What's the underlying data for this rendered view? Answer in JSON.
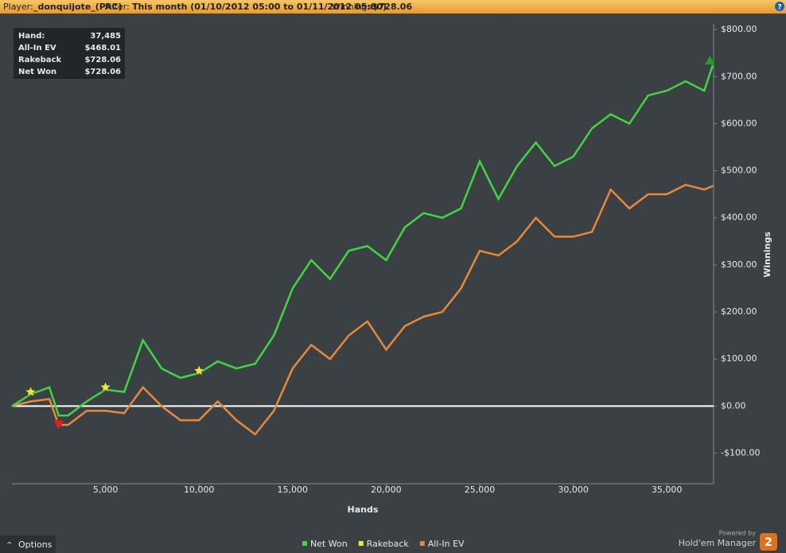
{
  "header": {
    "player_label": "Player:",
    "player": "_donquijote_(PAC)",
    "filter_label": "Filter:",
    "filter": "This month (01/10/2012 05:00 to 01/11/2012 05:00)",
    "winnings_label": "Winnings:",
    "winnings": "$728.06"
  },
  "summary": {
    "rows": [
      [
        "Hand:",
        "37,485"
      ],
      [
        "All-In EV",
        "$468.01"
      ],
      [
        "Rakeback",
        "$728.06"
      ],
      [
        "Net Won",
        "$728.06"
      ]
    ]
  },
  "chart_data": {
    "type": "line",
    "x_label": "Hands",
    "y_label": "Winnings",
    "x": [
      0,
      1000,
      2000,
      2500,
      3000,
      4000,
      5000,
      6000,
      7000,
      8000,
      9000,
      10000,
      11000,
      12000,
      13000,
      14000,
      15000,
      16000,
      17000,
      18000,
      19000,
      20000,
      21000,
      22000,
      23000,
      24000,
      25000,
      26000,
      27000,
      28000,
      29000,
      30000,
      31000,
      32000,
      33000,
      34000,
      35000,
      36000,
      37000,
      37485
    ],
    "series": [
      {
        "name": "Net Won",
        "color": "#3fd63f",
        "values": [
          0,
          25,
          40,
          -20,
          -20,
          10,
          35,
          30,
          140,
          80,
          60,
          70,
          95,
          80,
          90,
          150,
          250,
          310,
          270,
          330,
          340,
          310,
          380,
          410,
          400,
          420,
          520,
          440,
          510,
          560,
          510,
          530,
          590,
          620,
          600,
          660,
          670,
          690,
          670,
          728.06
        ]
      },
      {
        "name": "Rakeback",
        "color": "#f2e53a"
      },
      {
        "name": "All-In EV",
        "color": "#e8883a",
        "values": [
          0,
          10,
          15,
          -40,
          -40,
          -10,
          -10,
          -15,
          40,
          0,
          -30,
          -30,
          10,
          -30,
          -60,
          -10,
          80,
          130,
          100,
          150,
          180,
          120,
          170,
          190,
          200,
          250,
          330,
          320,
          350,
          400,
          360,
          360,
          370,
          460,
          420,
          450,
          450,
          470,
          460,
          468.01
        ]
      }
    ],
    "markers": [
      {
        "x": 1000,
        "y": 30,
        "shape": "star",
        "color": "#f2e53a"
      },
      {
        "x": 5000,
        "y": 40,
        "shape": "star",
        "color": "#f2e53a"
      },
      {
        "x": 10000,
        "y": 75,
        "shape": "star",
        "color": "#f2e53a"
      },
      {
        "x": 2500,
        "y": -40,
        "shape": "triangle-down",
        "color": "#e02020"
      },
      {
        "x": 37300,
        "y": 735,
        "shape": "triangle-up",
        "color": "#20a020"
      }
    ],
    "xlim": [
      0,
      37500
    ],
    "ylim": [
      -165,
      812
    ],
    "xticks": [
      {
        "value": 5000,
        "label": "5,000"
      },
      {
        "value": 10000,
        "label": "10,000"
      },
      {
        "value": 15000,
        "label": "15,000"
      },
      {
        "value": 20000,
        "label": "20,000"
      },
      {
        "value": 25000,
        "label": "25,000"
      },
      {
        "value": 30000,
        "label": "30,000"
      },
      {
        "value": 35000,
        "label": "35,000"
      }
    ],
    "yticks": [
      {
        "value": -100,
        "label": "-$100.00"
      },
      {
        "value": 0,
        "label": "$0.00"
      },
      {
        "value": 100,
        "label": "$100.00"
      },
      {
        "value": 200,
        "label": "$200.00"
      },
      {
        "value": 300,
        "label": "$300.00"
      },
      {
        "value": 400,
        "label": "$400.00"
      },
      {
        "value": 500,
        "label": "$500.00"
      },
      {
        "value": 600,
        "label": "$600.00"
      },
      {
        "value": 700,
        "label": "$700.00"
      },
      {
        "value": 800,
        "label": "$800.00"
      }
    ],
    "grid": false,
    "zero_line": true,
    "legend": "bottom"
  },
  "footer": {
    "options": "Options",
    "powered": "Powered by",
    "brand": "Hold'em Manager",
    "version": "2"
  }
}
